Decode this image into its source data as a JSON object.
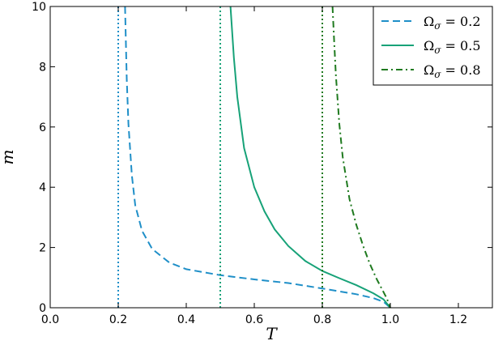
{
  "chart_data": {
    "type": "line",
    "xlabel": "T",
    "ylabel": "m",
    "xlim": [
      0.0,
      1.3
    ],
    "ylim": [
      0,
      10
    ],
    "xticks": [
      "0.0",
      "0.2",
      "0.4",
      "0.6",
      "0.8",
      "1.0",
      "1.2"
    ],
    "yticks": [
      "0",
      "2",
      "4",
      "6",
      "8",
      "10"
    ],
    "grid": false,
    "legend_position": "top-right",
    "series": [
      {
        "name": "Ω_σ = 0.2",
        "legend_prefix": "Ω",
        "legend_sub": "σ",
        "legend_value": " = 0.2",
        "color": "#1f8fc8",
        "style": "dashed",
        "x": [
          0.22,
          0.225,
          0.23,
          0.24,
          0.25,
          0.27,
          0.3,
          0.35,
          0.4,
          0.5,
          0.6,
          0.7,
          0.8,
          0.9,
          0.95,
          0.98,
          1.0
        ],
        "y": [
          10.0,
          7.6,
          6.1,
          4.4,
          3.4,
          2.55,
          1.95,
          1.5,
          1.28,
          1.08,
          0.94,
          0.82,
          0.64,
          0.45,
          0.32,
          0.2,
          0.0
        ],
        "vline": 0.2
      },
      {
        "name": "Ω_σ = 0.5",
        "legend_prefix": "Ω",
        "legend_sub": "σ",
        "legend_value": " = 0.5",
        "color": "#17a278",
        "style": "solid",
        "x": [
          0.53,
          0.54,
          0.55,
          0.57,
          0.6,
          0.63,
          0.66,
          0.7,
          0.75,
          0.8,
          0.85,
          0.9,
          0.95,
          0.98,
          1.0
        ],
        "y": [
          10.0,
          8.3,
          7.0,
          5.3,
          4.0,
          3.2,
          2.6,
          2.05,
          1.55,
          1.22,
          0.98,
          0.75,
          0.48,
          0.28,
          0.0
        ],
        "vline": 0.5
      },
      {
        "name": "Ω_σ = 0.8",
        "legend_prefix": "Ω",
        "legend_sub": "σ",
        "legend_value": " = 0.8",
        "color": "#1f7a1f",
        "style": "dashdot",
        "x": [
          0.83,
          0.835,
          0.84,
          0.85,
          0.86,
          0.88,
          0.9,
          0.92,
          0.94,
          0.96,
          0.98,
          0.99,
          1.0
        ],
        "y": [
          10.0,
          8.8,
          7.7,
          6.1,
          5.0,
          3.6,
          2.75,
          2.05,
          1.45,
          0.95,
          0.52,
          0.3,
          0.0
        ],
        "vline": 0.8
      }
    ]
  }
}
